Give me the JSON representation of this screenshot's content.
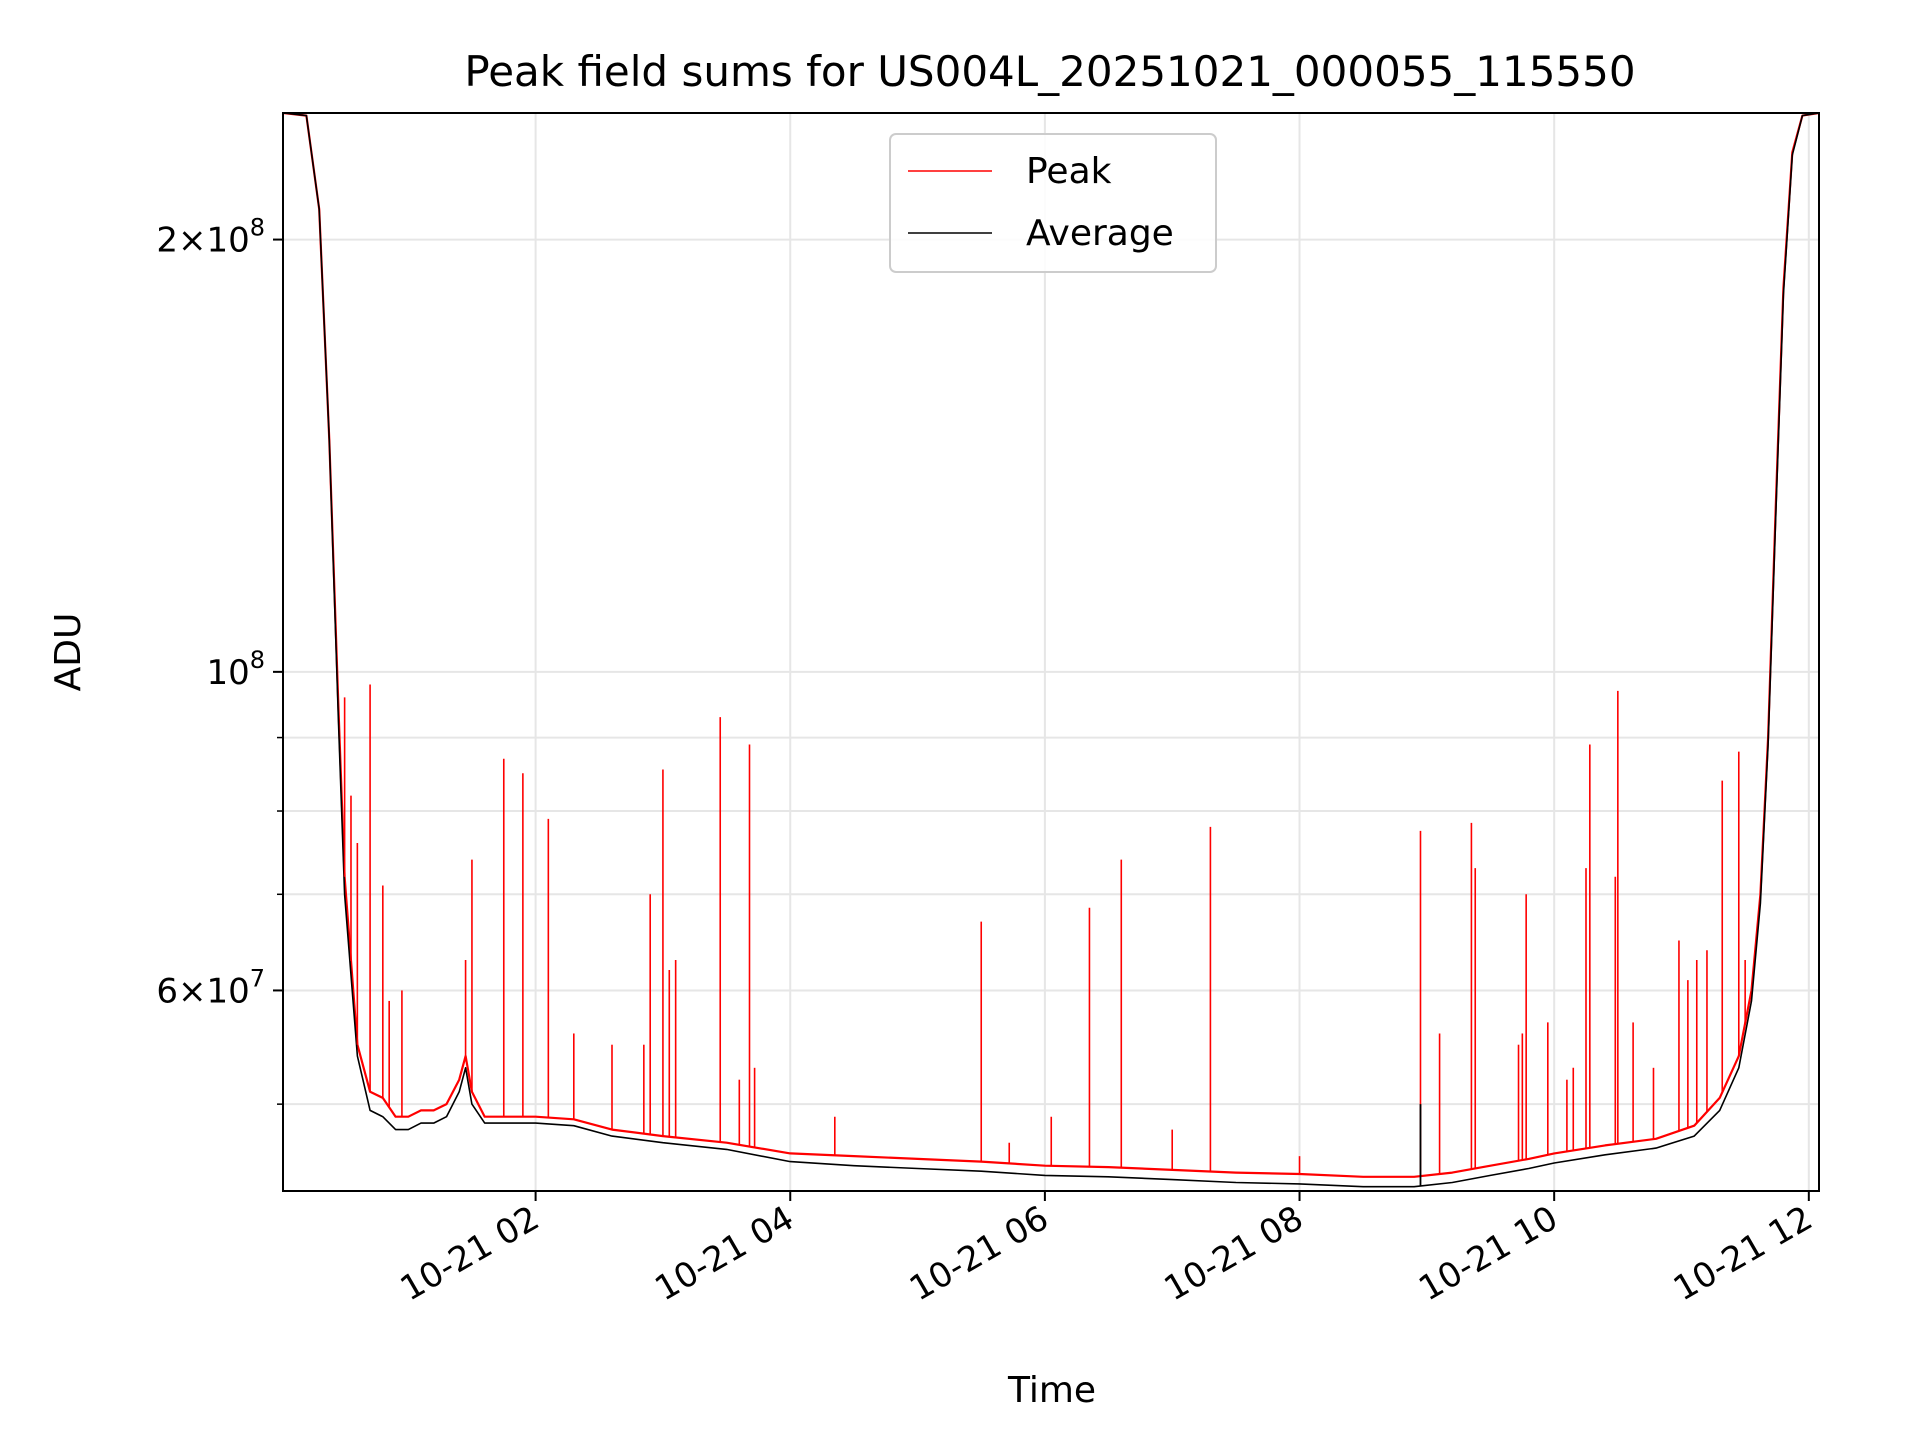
{
  "chart_data": {
    "type": "line",
    "title": "Peak field sums for US004L_20251021_000055_115550",
    "xlabel": "Time",
    "ylabel": "ADU",
    "yscale": "log",
    "xlim_hours": [
      0.016,
      12.08
    ],
    "ylim": [
      43500000,
      245000000
    ],
    "grid": true,
    "legend_position": "top-center",
    "x_ticks": [
      {
        "hour": 2,
        "label": "10-21 02"
      },
      {
        "hour": 4,
        "label": "10-21 04"
      },
      {
        "hour": 6,
        "label": "10-21 06"
      },
      {
        "hour": 8,
        "label": "10-21 08"
      },
      {
        "hour": 10,
        "label": "10-21 10"
      },
      {
        "hour": 12,
        "label": "10-21 12"
      }
    ],
    "y_major_ticks": [
      {
        "value": 60000000,
        "mantissa": "6",
        "base": "10",
        "exp": "7"
      },
      {
        "value": 100000000,
        "mantissa": "",
        "base": "10",
        "exp": "8"
      },
      {
        "value": 200000000,
        "mantissa": "2",
        "base": "10",
        "exp": "8"
      }
    ],
    "y_minor_grid": [
      50000000,
      70000000,
      80000000,
      90000000
    ],
    "times_hours": [
      0.02,
      0.2,
      0.3,
      0.38,
      0.45,
      0.5,
      0.6,
      0.7,
      0.8,
      0.9,
      1.0,
      1.1,
      1.2,
      1.3,
      1.4,
      1.45,
      1.5,
      1.6,
      1.8,
      2.0,
      2.3,
      2.6,
      3.0,
      3.5,
      4.0,
      4.5,
      5.0,
      5.5,
      6.0,
      6.5,
      7.0,
      7.5,
      8.0,
      8.5,
      8.9,
      9.2,
      9.5,
      9.8,
      10.0,
      10.4,
      10.8,
      11.1,
      11.3,
      11.45,
      11.55,
      11.62,
      11.68,
      11.74,
      11.8,
      11.87,
      11.95,
      12.08
    ],
    "series": [
      {
        "name": "Peak",
        "color": "#ff0000",
        "values": [
          245000000,
          244000000,
          210000000,
          145000000,
          95000000,
          72000000,
          55000000,
          51000000,
          50500000,
          49000000,
          49000000,
          49500000,
          49500000,
          50000000,
          52000000,
          54000000,
          51000000,
          49000000,
          49000000,
          49000000,
          48800000,
          48000000,
          47500000,
          47000000,
          46200000,
          46000000,
          45800000,
          45600000,
          45300000,
          45200000,
          45000000,
          44800000,
          44700000,
          44500000,
          44500000,
          44800000,
          45300000,
          45800000,
          46200000,
          46800000,
          47300000,
          48300000,
          50500000,
          54000000,
          60000000,
          70000000,
          90000000,
          130000000,
          185000000,
          230000000,
          244000000,
          245000000
        ]
      },
      {
        "name": "Average",
        "color": "#000000",
        "values": [
          245000000,
          244000000,
          210000000,
          145000000,
          93000000,
          70000000,
          54000000,
          49500000,
          49000000,
          48000000,
          48000000,
          48500000,
          48500000,
          49000000,
          51000000,
          53000000,
          50000000,
          48500000,
          48500000,
          48500000,
          48300000,
          47500000,
          47000000,
          46500000,
          45600000,
          45300000,
          45100000,
          44900000,
          44600000,
          44500000,
          44300000,
          44100000,
          44000000,
          43800000,
          43800000,
          44100000,
          44600000,
          45100000,
          45500000,
          46100000,
          46600000,
          47500000,
          49500000,
          53000000,
          59000000,
          69000000,
          89000000,
          128000000,
          183000000,
          229000000,
          244000000,
          245000000
        ]
      }
    ],
    "peak_spikes": [
      {
        "hour": 0.5,
        "value": 96000000
      },
      {
        "hour": 0.55,
        "value": 82000000
      },
      {
        "hour": 0.6,
        "value": 76000000
      },
      {
        "hour": 0.7,
        "value": 98000000
      },
      {
        "hour": 0.8,
        "value": 71000000
      },
      {
        "hour": 0.85,
        "value": 59000000
      },
      {
        "hour": 0.95,
        "value": 60000000
      },
      {
        "hour": 1.45,
        "value": 63000000
      },
      {
        "hour": 1.5,
        "value": 74000000
      },
      {
        "hour": 1.75,
        "value": 87000000
      },
      {
        "hour": 1.9,
        "value": 85000000
      },
      {
        "hour": 2.1,
        "value": 79000000
      },
      {
        "hour": 2.3,
        "value": 56000000
      },
      {
        "hour": 2.6,
        "value": 55000000
      },
      {
        "hour": 2.85,
        "value": 55000000
      },
      {
        "hour": 2.9,
        "value": 70000000
      },
      {
        "hour": 3.0,
        "value": 85500000
      },
      {
        "hour": 3.05,
        "value": 62000000
      },
      {
        "hour": 3.1,
        "value": 63000000
      },
      {
        "hour": 3.45,
        "value": 93000000
      },
      {
        "hour": 3.6,
        "value": 52000000
      },
      {
        "hour": 3.68,
        "value": 89000000
      },
      {
        "hour": 3.72,
        "value": 53000000
      },
      {
        "hour": 4.35,
        "value": 49000000
      },
      {
        "hour": 5.5,
        "value": 67000000
      },
      {
        "hour": 5.72,
        "value": 47000000
      },
      {
        "hour": 6.05,
        "value": 49000000
      },
      {
        "hour": 6.35,
        "value": 68500000
      },
      {
        "hour": 6.6,
        "value": 74000000
      },
      {
        "hour": 7.0,
        "value": 48000000
      },
      {
        "hour": 7.3,
        "value": 78000000
      },
      {
        "hour": 8.0,
        "value": 46000000
      },
      {
        "hour": 8.95,
        "value": 77500000
      },
      {
        "hour": 9.1,
        "value": 56000000
      },
      {
        "hour": 9.35,
        "value": 78500000
      },
      {
        "hour": 9.38,
        "value": 73000000
      },
      {
        "hour": 9.72,
        "value": 55000000
      },
      {
        "hour": 9.75,
        "value": 56000000
      },
      {
        "hour": 9.78,
        "value": 70000000
      },
      {
        "hour": 9.95,
        "value": 57000000
      },
      {
        "hour": 10.1,
        "value": 52000000
      },
      {
        "hour": 10.15,
        "value": 53000000
      },
      {
        "hour": 10.25,
        "value": 73000000
      },
      {
        "hour": 10.28,
        "value": 89000000
      },
      {
        "hour": 10.48,
        "value": 72000000
      },
      {
        "hour": 10.5,
        "value": 97000000
      },
      {
        "hour": 10.62,
        "value": 57000000
      },
      {
        "hour": 10.78,
        "value": 53000000
      },
      {
        "hour": 10.98,
        "value": 65000000
      },
      {
        "hour": 11.05,
        "value": 61000000
      },
      {
        "hour": 11.12,
        "value": 63000000
      },
      {
        "hour": 11.2,
        "value": 64000000
      },
      {
        "hour": 11.32,
        "value": 84000000
      },
      {
        "hour": 11.45,
        "value": 88000000
      },
      {
        "hour": 11.5,
        "value": 63000000
      }
    ],
    "average_spikes": [
      {
        "hour": 8.95,
        "value": 50000000
      }
    ]
  }
}
